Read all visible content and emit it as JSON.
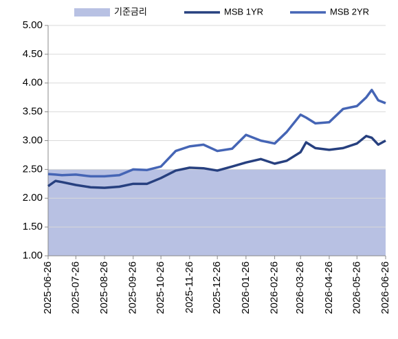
{
  "chart_data": {
    "type": "line",
    "x": [
      "2025-06-26",
      "2025-07-04",
      "2025-07-11",
      "2025-07-26",
      "2025-08-11",
      "2025-08-26",
      "2025-09-11",
      "2025-09-26",
      "2025-10-11",
      "2025-10-26",
      "2025-11-11",
      "2025-11-26",
      "2025-12-11",
      "2025-12-26",
      "2026-01-11",
      "2026-01-26",
      "2026-02-11",
      "2026-02-26",
      "2026-03-11",
      "2026-03-26",
      "2026-04-01",
      "2026-04-11",
      "2026-04-26",
      "2026-05-11",
      "2026-05-26",
      "2026-06-05",
      "2026-06-11",
      "2026-06-18",
      "2026-06-26"
    ],
    "series": [
      {
        "name": "기준금리",
        "color": "#b8c1e3",
        "style": "area",
        "values": [
          2.5,
          2.5,
          2.5,
          2.5,
          2.5,
          2.5,
          2.5,
          2.5,
          2.5,
          2.5,
          2.5,
          2.5,
          2.5,
          2.5,
          2.5,
          2.5,
          2.5,
          2.5,
          2.5,
          2.5,
          2.5,
          2.5,
          2.5,
          2.5,
          2.5,
          2.5,
          2.5,
          2.5,
          2.5
        ]
      },
      {
        "name": "MSB 1YR",
        "color": "#27407f",
        "style": "line",
        "values": [
          2.21,
          2.3,
          2.28,
          2.23,
          2.19,
          2.18,
          2.2,
          2.25,
          2.25,
          2.35,
          2.48,
          2.53,
          2.52,
          2.48,
          2.55,
          2.62,
          2.68,
          2.6,
          2.65,
          2.8,
          2.97,
          2.87,
          2.84,
          2.87,
          2.95,
          3.08,
          3.05,
          2.93,
          3.0
        ]
      },
      {
        "name": "MSB 2YR",
        "color": "#4565b5",
        "style": "line",
        "values": [
          2.42,
          2.41,
          2.4,
          2.41,
          2.38,
          2.38,
          2.4,
          2.5,
          2.49,
          2.55,
          2.82,
          2.9,
          2.93,
          2.82,
          2.86,
          3.1,
          3.0,
          2.95,
          3.15,
          3.45,
          3.4,
          3.3,
          3.32,
          3.55,
          3.6,
          3.75,
          3.88,
          3.7,
          3.65
        ]
      }
    ],
    "xlim": [
      "2025-06-26",
      "2026-06-26"
    ],
    "xticks": [
      "2025-06-26",
      "2025-07-26",
      "2025-08-26",
      "2025-09-26",
      "2025-10-26",
      "2025-11-26",
      "2025-12-26",
      "2026-01-26",
      "2026-02-26",
      "2026-03-26",
      "2026-04-26",
      "2026-05-26",
      "2026-06-26"
    ],
    "ylim": [
      1,
      5
    ],
    "yticks": [
      {
        "value": 1,
        "label": "1.00"
      },
      {
        "value": 1.5,
        "label": "1.50"
      },
      {
        "value": 2,
        "label": "2.00"
      },
      {
        "value": 2.5,
        "label": "2.50"
      },
      {
        "value": 3,
        "label": "3.00"
      },
      {
        "value": 3.5,
        "label": "3.50"
      },
      {
        "value": 4,
        "label": "4.00"
      },
      {
        "value": 4.5,
        "label": "4.50"
      },
      {
        "value": 5,
        "label": "5.00"
      }
    ],
    "grid": true,
    "legend": "top"
  }
}
